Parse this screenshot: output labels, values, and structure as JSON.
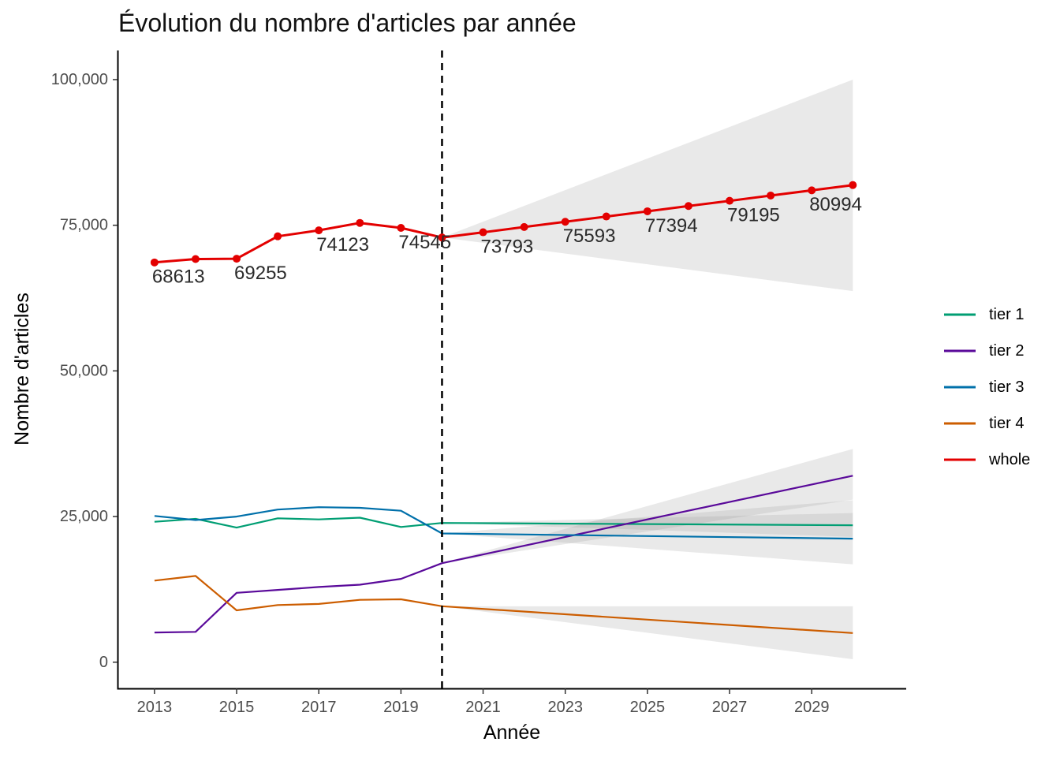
{
  "chart_data": {
    "type": "line",
    "title": "Évolution du nombre d'articles par année",
    "xlabel": "Année",
    "ylabel": "Nombre d'articles",
    "xlim": [
      2012.1,
      2031.3
    ],
    "ylim": [
      -4500,
      105000
    ],
    "x_ticks": [
      2013,
      2015,
      2017,
      2019,
      2021,
      2023,
      2025,
      2027,
      2029
    ],
    "x_tick_labels": [
      "2013",
      "2015",
      "2017",
      "2019",
      "2021",
      "2023",
      "2025",
      "2027",
      "2029"
    ],
    "y_ticks": [
      0,
      25000,
      50000,
      75000,
      100000
    ],
    "y_tick_labels": [
      "0",
      "25,000",
      "50,000",
      "75,000",
      "100,000"
    ],
    "grid": false,
    "legend_position": "right",
    "forecast_start": 2020,
    "series": [
      {
        "name": "tier 1",
        "color": "#009E73",
        "x": [
          2013,
          2014,
          2015,
          2016,
          2017,
          2018,
          2019,
          2020,
          2030
        ],
        "values": [
          24100,
          24600,
          23100,
          24700,
          24500,
          24800,
          23200,
          23900,
          23500
        ],
        "band": {
          "x": [
            2020,
            2030
          ],
          "lower": [
            23900,
            21500
          ],
          "upper": [
            23900,
            25600
          ]
        }
      },
      {
        "name": "tier 2",
        "color": "#5A0A9A",
        "x": [
          2013,
          2014,
          2015,
          2016,
          2017,
          2018,
          2019,
          2020,
          2030
        ],
        "values": [
          5100,
          5200,
          11900,
          12400,
          12900,
          13300,
          14300,
          17000,
          32000
        ],
        "band": {
          "x": [
            2020,
            2030
          ],
          "lower": [
            17000,
            27900
          ],
          "upper": [
            17000,
            36600
          ]
        }
      },
      {
        "name": "tier 3",
        "color": "#0070AA",
        "x": [
          2013,
          2014,
          2015,
          2016,
          2017,
          2018,
          2019,
          2020,
          2030
        ],
        "values": [
          25100,
          24400,
          25000,
          26200,
          26600,
          26500,
          26000,
          22100,
          21200
        ],
        "band": {
          "x": [
            2020,
            2030
          ],
          "lower": [
            22100,
            16800
          ],
          "upper": [
            22100,
            27800
          ]
        }
      },
      {
        "name": "tier 4",
        "color": "#CC5D00",
        "x": [
          2013,
          2014,
          2015,
          2016,
          2017,
          2018,
          2019,
          2020,
          2030
        ],
        "values": [
          14000,
          14800,
          8900,
          9800,
          10000,
          10700,
          10800,
          9600,
          5000
        ],
        "band": {
          "x": [
            2020,
            2030
          ],
          "lower": [
            9600,
            500
          ],
          "upper": [
            9600,
            9600
          ]
        }
      },
      {
        "name": "whole",
        "color": "#E30000",
        "x": [
          2013,
          2014,
          2015,
          2016,
          2017,
          2018,
          2019,
          2020,
          2021,
          2022,
          2023,
          2024,
          2025,
          2026,
          2027,
          2028,
          2029,
          2030
        ],
        "values": [
          68613,
          69200,
          69255,
          73100,
          74123,
          75400,
          74545,
          72900,
          73793,
          74700,
          75593,
          76500,
          77394,
          78300,
          79195,
          80100,
          80994,
          81900
        ],
        "points": true,
        "band": {
          "x": [
            2020,
            2030
          ],
          "lower": [
            72900,
            63700
          ],
          "upper": [
            72900,
            100000
          ]
        }
      }
    ],
    "annotations": [
      {
        "x": 2013,
        "y": 68613,
        "text": "68613"
      },
      {
        "x": 2015,
        "y": 69255,
        "text": "69255"
      },
      {
        "x": 2017,
        "y": 74123,
        "text": "74123"
      },
      {
        "x": 2019,
        "y": 74545,
        "text": "74545"
      },
      {
        "x": 2021,
        "y": 73793,
        "text": "73793"
      },
      {
        "x": 2023,
        "y": 75593,
        "text": "75593"
      },
      {
        "x": 2025,
        "y": 77394,
        "text": "77394"
      },
      {
        "x": 2027,
        "y": 79195,
        "text": "79195"
      },
      {
        "x": 2029,
        "y": 80994,
        "text": "80994"
      }
    ]
  }
}
